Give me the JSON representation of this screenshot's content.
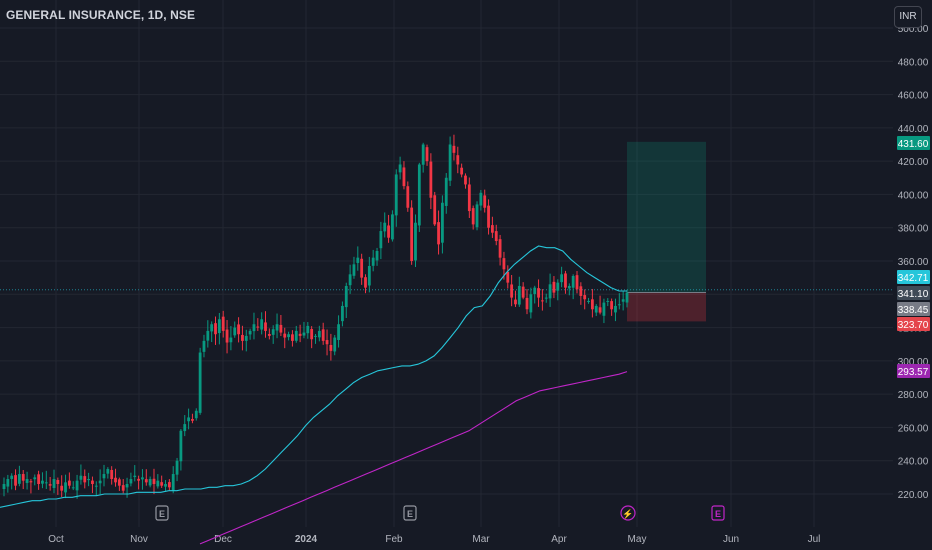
{
  "header": {
    "title": "GENERAL INSURANCE, 1D, NSE",
    "currency": "INR"
  },
  "chart_data": {
    "type": "candlestick",
    "y_axis": {
      "ticks": [
        220,
        240,
        260,
        280,
        300,
        320,
        340,
        360,
        380,
        400,
        420,
        440,
        460,
        480,
        500
      ],
      "range": [
        205,
        502
      ]
    },
    "x_axis": {
      "labels": [
        "Oct",
        "Nov",
        "Dec",
        "2024",
        "Feb",
        "Mar",
        "Apr",
        "May",
        "Jun",
        "Jul"
      ]
    },
    "price_labels": [
      {
        "value": "431.60",
        "price": 431.6,
        "color": "#089981"
      },
      {
        "value": "342.71",
        "price": 342.7,
        "color": "#26c6da"
      },
      {
        "value": "341.10",
        "price": 341.1,
        "color": "#3f4a56"
      },
      {
        "value": "338.45",
        "price": 338.45,
        "color": "#787b86"
      },
      {
        "value": "323.70",
        "price": 323.7,
        "color": "#e5454c"
      },
      {
        "value": "293.57",
        "price": 293.57,
        "color": "#9c27b0"
      }
    ],
    "position": {
      "entry": 341.1,
      "target": 431.6,
      "stop": 323.7
    },
    "markers": [
      {
        "label": "E",
        "type": "earnings"
      },
      {
        "label": "E",
        "type": "earnings"
      },
      {
        "label": "⚡",
        "type": "dividend"
      },
      {
        "label": "E",
        "type": "earnings-upcoming"
      }
    ],
    "series_close_segments": [
      [
        226,
        229,
        231,
        225,
        232,
        228,
        229,
        227,
        230,
        226,
        228,
        227,
        225,
        229,
        226,
        222,
        227,
        225,
        224,
        228,
        231,
        227,
        229,
        226,
        225,
        228,
        232,
        235,
        229,
        227,
        225,
        222,
        226,
        229,
        231,
        228,
        230,
        227,
        229,
        226,
        228,
        225,
        226,
        224,
        232,
        240,
        258,
        262,
        266,
        264,
        270,
        305,
        312,
        318,
        322,
        316,
        325,
        318,
        311,
        314,
        320,
        316,
        312,
        315,
        318,
        322,
        320,
        325,
        318,
        315,
        319,
        322,
        317,
        314,
        316,
        312,
        318,
        315,
        317,
        321,
        313,
        315,
        318,
        312,
        310,
        306,
        314,
        322,
        333,
        345,
        352,
        358,
        362,
        350,
        344,
        357,
        362,
        366,
        378,
        383,
        374,
        388,
        412,
        418,
        405,
        392,
        360,
        383,
        418,
        430,
        420,
        398,
        382,
        370,
        395,
        410,
        430,
        425,
        418,
        412,
        406,
        390,
        382,
        394,
        401,
        392,
        380,
        377,
        372,
        362,
        355,
        347,
        338,
        334,
        345,
        338,
        331,
        340,
        344,
        338,
        336,
        338,
        346,
        341,
        347,
        352,
        344,
        345,
        351,
        343,
        339,
        337,
        336,
        331,
        333,
        329,
        335,
        336,
        331,
        333,
        334,
        337,
        341
      ]
    ],
    "ema_fast": [
      212,
      213,
      214,
      215,
      216,
      216,
      217,
      217,
      218,
      218,
      219,
      219,
      219,
      220,
      220,
      220,
      220,
      221,
      221,
      221,
      221,
      222,
      222,
      223,
      223,
      223,
      224,
      224,
      225,
      225,
      226,
      228,
      231,
      235,
      240,
      245,
      250,
      255,
      261,
      266,
      270,
      274,
      279,
      283,
      287,
      290,
      292,
      294,
      295,
      296,
      297,
      297,
      298,
      300,
      303,
      308,
      314,
      320,
      327,
      332,
      333,
      339,
      347,
      353,
      358,
      362,
      366,
      369,
      368,
      368,
      366,
      361,
      357,
      353,
      350,
      347,
      344,
      342,
      342
    ],
    "ema_slow": [
      190,
      192,
      194,
      196,
      198,
      200,
      202,
      204,
      206,
      208,
      210,
      212,
      214,
      216,
      218,
      220,
      222,
      224,
      226,
      228,
      230,
      232,
      234,
      236,
      238,
      240,
      242,
      244,
      246,
      248,
      250,
      252,
      254,
      256,
      258,
      261,
      264,
      267,
      270,
      273,
      276,
      278,
      280,
      282,
      283,
      284,
      285,
      286,
      287,
      288,
      289,
      290,
      291,
      292,
      293.57
    ],
    "colors": {
      "up": "#089981",
      "down": "#f23645",
      "ema_fast": "#26c6da",
      "ema_slow": "#c026c8",
      "grid": "#232732",
      "axis_text": "#b2b5be"
    }
  }
}
